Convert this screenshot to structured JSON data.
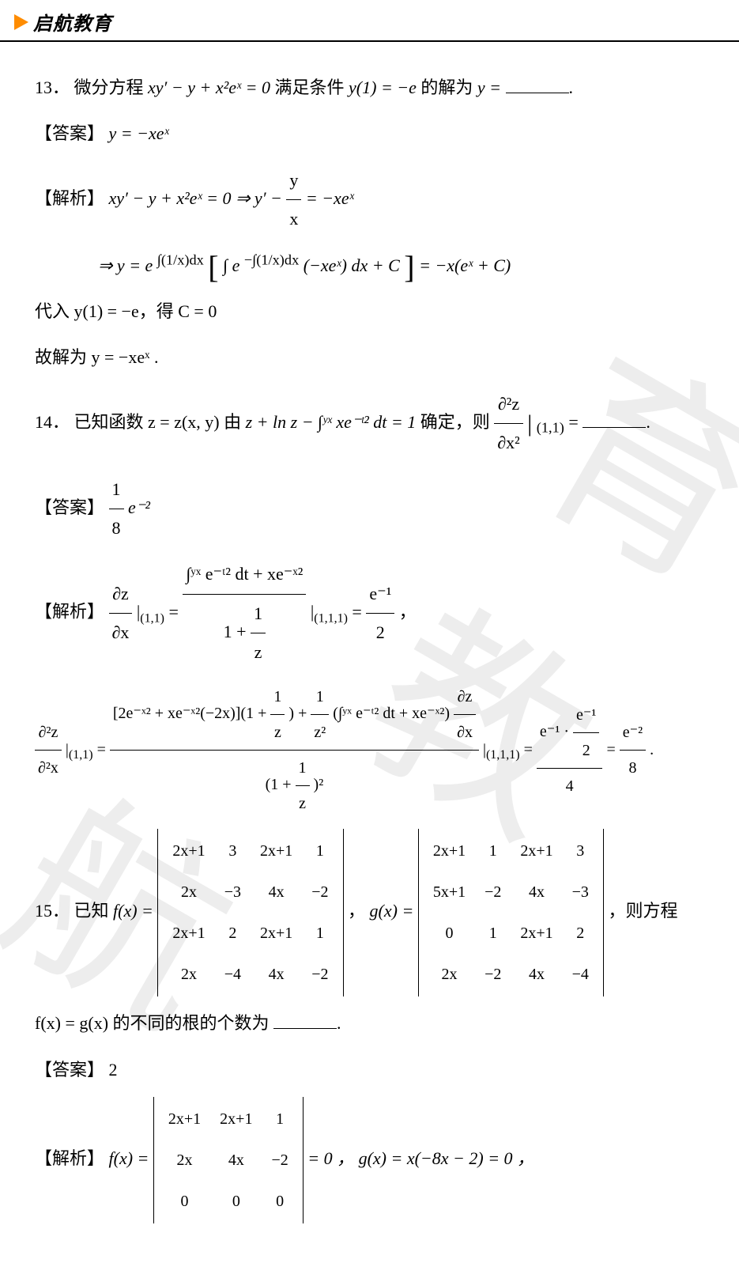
{
  "header": {
    "brand": "启航教育"
  },
  "watermark": {
    "c1": "育",
    "c2": "教",
    "c3": "航"
  },
  "q13": {
    "num": "13．",
    "stem_a": "微分方程 ",
    "stem_b": " 满足条件 ",
    "stem_c": " 的解为 ",
    "eq1": "xy′ − y + x²eˣ = 0",
    "cond": "y(1) = −e",
    "yvar": "y = ",
    "ans_label": "【答案】",
    "ans_val": "y = −xeˣ",
    "sol_label": "【解析】",
    "sol1_a": "xy′ − y + x²eˣ = 0 ⇒ y′ − ",
    "sol1_frac_num": "y",
    "sol1_frac_den": "x",
    "sol1_b": " = −xeˣ",
    "sol2_a": "⇒ y = e",
    "sol2_exp1": "∫(1/x)dx",
    "sol2_b": "∫ e",
    "sol2_exp2": "−∫(1/x)dx",
    "sol2_c": "(−xeˣ) dx + C",
    "sol2_d": " = −x(eˣ + C)",
    "sol3": "代入 y(1) = −e，得 C = 0",
    "sol4": "故解为 y = −xeˣ ."
  },
  "q14": {
    "num": "14．",
    "stem_a": "已知函数 z = z(x, y) 由 ",
    "stem_b": " 确定，则 ",
    "eq": "z + ln z − ∫ʸˣ xe⁻ᵗ² dt = 1",
    "d2z": "∂²z",
    "dx2": "∂x²",
    "at": "(1,1)",
    "eqs": " = ",
    "ans_label": "【答案】",
    "ans_num": "1",
    "ans_den": "8",
    "ans_e": "e⁻²",
    "sol_label": "【解析】",
    "dz": "∂z",
    "dx": "∂x",
    "bar": "|",
    "at_sub": "(1,1)",
    "s1_num": "∫ʸˣ e⁻ᵗ² dt + xe⁻ˣ²",
    "s1_den_a": "1 + ",
    "s1_den_num": "1",
    "s1_den_den": "z",
    "at2": "(1,1,1)",
    "s1_res_num": "e⁻¹",
    "s1_res_den": "2",
    "comma": "，",
    "d2zx": "∂²z",
    "d2x": "∂²x",
    "s2_big_num_a": "[2e⁻ˣ² + xe⁻ˣ²(−2x)](1 + ",
    "s2_big_num_b": ") + ",
    "s2_big_num_c": "(∫ʸˣ e⁻ᵗ² dt + xe⁻ˣ²)",
    "s2_big_den_a": "(1 + ",
    "s2_big_den_b": ")²",
    "s2_r1_num_a": "e⁻¹ · ",
    "s2_r1_num_num": "e⁻¹",
    "s2_r1_num_den": "2",
    "s2_r1_den": "4",
    "s2_r2_num": "e⁻²",
    "s2_r2_den": "8",
    "dot": "."
  },
  "q15": {
    "num": "15．",
    "stem_a": "已知 ",
    "fx": "f(x) = ",
    "gx": "g(x) = ",
    "stem_b": "，",
    "stem_c": "，则方程",
    "stem_d": "f(x) = g(x) 的不同的根的个数为",
    "ans_label": "【答案】",
    "ans_val": "2",
    "sol_label": "【解析】",
    "sol_fx": "f(x) = ",
    "sol_eq": " = 0 ，  g(x) = x(−8x − 2) = 0 ，",
    "detF": [
      [
        "2x+1",
        "3",
        "2x+1",
        "1"
      ],
      [
        "2x",
        "−3",
        "4x",
        "−2"
      ],
      [
        "2x+1",
        "2",
        "2x+1",
        "1"
      ],
      [
        "2x",
        "−4",
        "4x",
        "−2"
      ]
    ],
    "detG": [
      [
        "2x+1",
        "1",
        "2x+1",
        "3"
      ],
      [
        "5x+1",
        "−2",
        "4x",
        "−3"
      ],
      [
        "0",
        "1",
        "2x+1",
        "2"
      ],
      [
        "2x",
        "−2",
        "4x",
        "−4"
      ]
    ],
    "detS": [
      [
        "2x+1",
        "2x+1",
        "1"
      ],
      [
        "2x",
        "4x",
        "−2"
      ],
      [
        "0",
        "0",
        "0"
      ]
    ]
  }
}
